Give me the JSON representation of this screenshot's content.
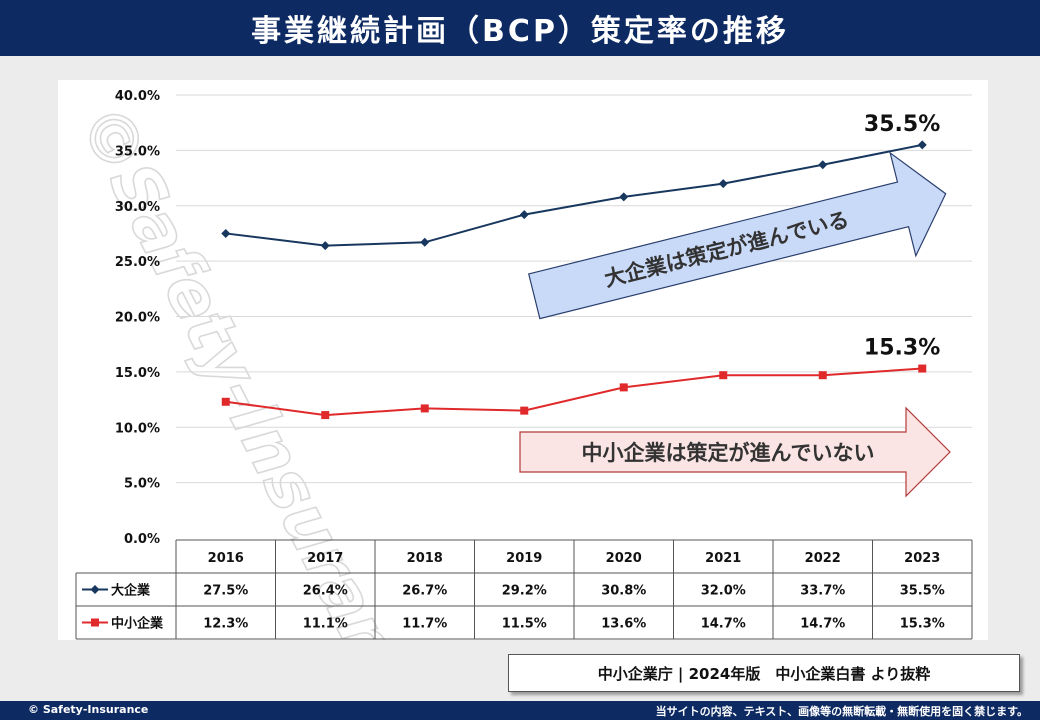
{
  "header": {
    "title": "事業継続計画（BCP）策定率の推移"
  },
  "chart_data": {
    "type": "line",
    "title": "",
    "xlabel": "",
    "ylabel": "",
    "categories": [
      "2016",
      "2017",
      "2018",
      "2019",
      "2020",
      "2021",
      "2022",
      "2023"
    ],
    "ylim": [
      0,
      40
    ],
    "yticks": [
      "0.0%",
      "5.0%",
      "10.0%",
      "15.0%",
      "20.0%",
      "25.0%",
      "30.0%",
      "35.0%",
      "40.0%"
    ],
    "grid": true,
    "series": [
      {
        "name": "大企業",
        "color": "#17375e",
        "marker": "diamond",
        "values": [
          27.5,
          26.4,
          26.7,
          29.2,
          30.8,
          32.0,
          33.7,
          35.5
        ],
        "table_values": [
          "27.5%",
          "26.4%",
          "26.7%",
          "29.2%",
          "30.8%",
          "32.0%",
          "33.7%",
          "35.5%"
        ],
        "end_label": "35.5%"
      },
      {
        "name": "中小企業",
        "color": "#e0292b",
        "marker": "square",
        "values": [
          12.3,
          11.1,
          11.7,
          11.5,
          13.6,
          14.7,
          14.7,
          15.3
        ],
        "table_values": [
          "12.3%",
          "11.1%",
          "11.7%",
          "11.5%",
          "13.6%",
          "14.7%",
          "14.7%",
          "15.3%"
        ],
        "end_label": "15.3%"
      }
    ],
    "annotations": [
      {
        "text": "大企業は策定が進んでいる",
        "fill": "#c9daf8",
        "stroke": "#2a3f6e"
      },
      {
        "text": "中小企業は策定が進んでいない",
        "fill": "#fbe4e4",
        "stroke": "#b23a3a"
      }
    ]
  },
  "watermark": "©Safety-Insurance",
  "source": "中小企業庁 | 2024年版　中小企業白書 より抜粋",
  "footer": {
    "copyright": "© Safety-Insurance",
    "notice": "当サイトの内容、テキスト、画像等の無断転載・無断使用を固く禁じます。"
  }
}
